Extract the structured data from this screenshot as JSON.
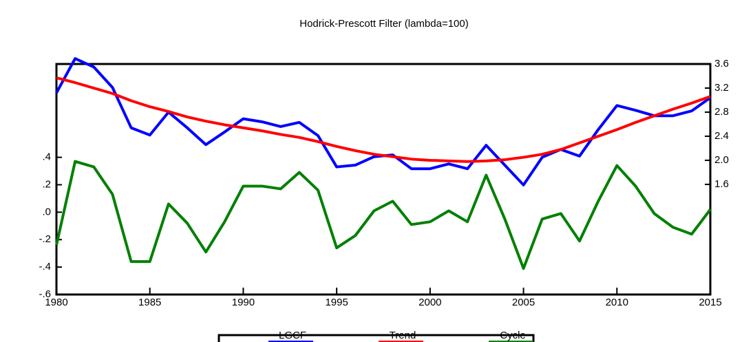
{
  "chart_data": {
    "type": "line",
    "title": "Hodrick-Prescott Filter (lambda=100)",
    "x": [
      1980,
      1981,
      1982,
      1983,
      1984,
      1985,
      1986,
      1987,
      1988,
      1989,
      1990,
      1991,
      1992,
      1993,
      1994,
      1995,
      1996,
      1997,
      1998,
      1999,
      2000,
      2001,
      2002,
      2003,
      2004,
      2005,
      2006,
      2007,
      2008,
      2009,
      2010,
      2011,
      2012,
      2013,
      2014,
      2015
    ],
    "xlim": [
      1980,
      2015
    ],
    "xticks": [
      1980,
      1985,
      1990,
      1995,
      2000,
      2005,
      2010,
      2015
    ],
    "ylim": [
      -0.6,
      1.08
    ],
    "yticks": [
      {
        "value": -0.6,
        "label": "-.6"
      },
      {
        "value": -0.4,
        "label": "-.4"
      },
      {
        "value": -0.2,
        "label": "-.2"
      },
      {
        "value": 0,
        "label": ".0"
      },
      {
        "value": 0.2,
        "label": ".2"
      },
      {
        "value": 0.4,
        "label": ".4"
      }
    ],
    "y2lim": [
      -0.23,
      3.6
    ],
    "y2ticks": [
      1.6,
      {
        "value": 2,
        "label": "2.0"
      },
      2.4,
      2.8,
      3.2,
      3.6
    ],
    "series": [
      {
        "name": "LGCF",
        "color": "#0000ff",
        "axis": "y2",
        "values": [
          3.12,
          3.69,
          3.55,
          3.21,
          2.54,
          2.42,
          2.8,
          2.54,
          2.26,
          2.47,
          2.69,
          2.64,
          2.56,
          2.63,
          2.41,
          1.89,
          1.92,
          2.06,
          2.09,
          1.86,
          1.86,
          1.94,
          1.86,
          2.25,
          1.92,
          1.59,
          2.05,
          2.18,
          2.07,
          2.51,
          2.91,
          2.83,
          2.74,
          2.74,
          2.82,
          3.04
        ]
      },
      {
        "name": "Trend",
        "color": "#ff0000",
        "axis": "y2",
        "values": [
          3.37,
          3.29,
          3.2,
          3.11,
          2.99,
          2.89,
          2.81,
          2.72,
          2.65,
          2.59,
          2.54,
          2.49,
          2.43,
          2.38,
          2.31,
          2.23,
          2.16,
          2.1,
          2.06,
          2.02,
          2.0,
          1.99,
          1.98,
          1.99,
          2.01,
          2.05,
          2.1,
          2.18,
          2.29,
          2.4,
          2.51,
          2.63,
          2.74,
          2.85,
          2.95,
          3.06
        ]
      },
      {
        "name": "Cycle",
        "color": "#008000",
        "values": [
          -0.24,
          0.37,
          0.33,
          0.13,
          -0.36,
          -0.36,
          0.06,
          -0.08,
          -0.29,
          -0.07,
          0.19,
          0.19,
          0.17,
          0.29,
          0.16,
          -0.26,
          -0.17,
          0.01,
          0.08,
          -0.09,
          -0.07,
          0.01,
          -0.07,
          0.27,
          -0.05,
          -0.41,
          -0.05,
          -0.01,
          -0.21,
          0.08,
          0.34,
          0.19,
          -0.01,
          -0.11,
          -0.16,
          0.02
        ]
      }
    ]
  }
}
